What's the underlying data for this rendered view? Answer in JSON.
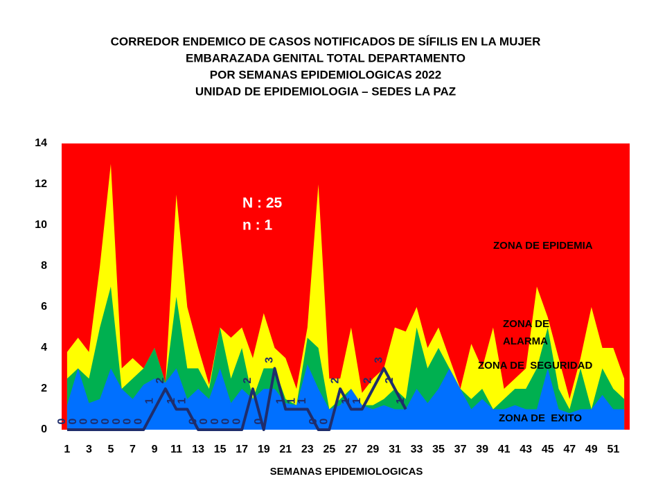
{
  "chart_data": {
    "type": "endemic_corridor",
    "title_lines": [
      "CORREDOR  ENDEMICO  DE CASOS NOTIFICADOS  DE SÍFILIS  EN LA MUJER",
      "EMBARAZADA  GENITAL  TOTAL DEPARTAMENTO",
      "POR SEMANAS  EPIDEMIOLOGICAS  2022",
      "UNIDAD  DE EPIDEMIOLOGIA  – SEDES LA PAZ"
    ],
    "x_label": "SEMANAS EPIDEMIOLOGICAS",
    "annotations": [
      "N : 25",
      "n : 1"
    ],
    "x": [
      1,
      2,
      3,
      4,
      5,
      6,
      7,
      8,
      9,
      10,
      11,
      12,
      13,
      14,
      15,
      16,
      17,
      18,
      19,
      20,
      21,
      22,
      23,
      24,
      25,
      26,
      27,
      28,
      29,
      30,
      31,
      32,
      33,
      34,
      35,
      36,
      37,
      38,
      39,
      40,
      41,
      42,
      43,
      44,
      45,
      46,
      47,
      48,
      49,
      50,
      51,
      52
    ],
    "xlim": [
      0.5,
      52.5
    ],
    "xticks": [
      1,
      3,
      5,
      7,
      9,
      11,
      13,
      15,
      17,
      19,
      21,
      23,
      25,
      27,
      29,
      31,
      33,
      35,
      37,
      39,
      41,
      43,
      45,
      47,
      49,
      51
    ],
    "ylim": [
      0,
      14
    ],
    "yticks": [
      0,
      2,
      4,
      6,
      8,
      10,
      12,
      14
    ],
    "epidemic_zone": {
      "label_lines": [
        "ZONA DE EPIDEMIA"
      ],
      "color": "#ff0000"
    },
    "zones": [
      {
        "label_lines": [
          "ZONA DE",
          "ALARMA"
        ],
        "color": "#ffff00",
        "values": [
          3.8,
          4.5,
          3.8,
          8,
          13,
          3,
          3.5,
          3,
          4,
          2.3,
          11.5,
          6,
          4,
          2.2,
          5,
          4.5,
          5,
          3.5,
          5.7,
          4,
          3.5,
          2,
          5,
          12,
          2.5,
          2.5,
          5,
          1.8,
          2.5,
          3,
          5,
          4.8,
          6,
          4,
          5,
          3.5,
          2,
          4.2,
          3,
          5,
          2,
          2.5,
          3,
          7,
          5.5,
          3.5,
          1.5,
          3.5,
          6,
          4,
          4,
          2.5
        ]
      },
      {
        "label_lines": [
          "ZONA DE  SEGURIDAD"
        ],
        "color": "#00b050",
        "values": [
          2.5,
          3,
          2.5,
          5,
          7,
          2,
          2.5,
          3,
          4,
          2.3,
          6.5,
          3,
          3,
          2,
          5,
          2.5,
          4,
          1.5,
          3,
          3,
          1.5,
          1.2,
          4.5,
          4,
          1,
          1.5,
          2,
          1.2,
          1.2,
          1.5,
          2,
          1.5,
          5,
          3,
          4,
          3,
          2,
          1.5,
          2,
          1,
          1.5,
          2,
          2,
          3,
          5,
          2,
          1,
          3,
          1,
          3,
          2,
          1.5
        ]
      },
      {
        "label_lines": [
          "ZONA DE  EXITO"
        ],
        "color": "#0070ff",
        "values": [
          1.2,
          3,
          1.3,
          1.5,
          3,
          2,
          1.5,
          2.2,
          2.5,
          2.3,
          3,
          1.5,
          2,
          1.5,
          3,
          1.3,
          2,
          1.5,
          2,
          2,
          1.3,
          1.2,
          3.2,
          2,
          1,
          1.2,
          2,
          1.2,
          1,
          1.2,
          1,
          1,
          2,
          1.3,
          2,
          3,
          2,
          1,
          1.5,
          1,
          1,
          1.2,
          1,
          1,
          3,
          1,
          0.8,
          1,
          1,
          1.7,
          1,
          1
        ]
      }
    ],
    "cases": {
      "color": "#1f2d6b",
      "values": [
        0,
        0,
        0,
        0,
        0,
        0,
        0,
        0,
        1,
        2,
        1,
        1,
        0,
        0,
        0,
        0,
        0,
        2,
        0,
        3,
        1,
        1,
        1,
        0,
        0,
        2,
        1,
        1,
        2,
        3,
        2,
        1,
        null,
        null,
        null,
        null,
        null,
        null,
        null,
        null,
        null,
        null,
        null,
        null,
        null,
        null,
        null,
        null,
        null,
        null,
        null,
        null
      ]
    }
  }
}
